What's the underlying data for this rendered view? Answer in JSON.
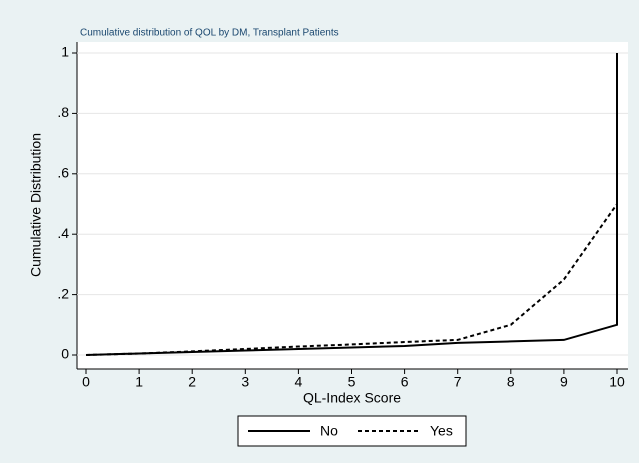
{
  "chart_data": {
    "type": "line",
    "title": "Cumulative distribution of QOL by DM, Transplant Patients",
    "x_label": "QL-Index Score",
    "y_label": "Cumulative Distribution",
    "x": [
      0,
      1,
      2,
      3,
      4,
      5,
      6,
      7,
      8,
      9,
      10,
      10
    ],
    "series": [
      {
        "name": "No",
        "color": "#000000",
        "dash": "solid",
        "values": [
          0,
          0.005,
          0.01,
          0.015,
          0.02,
          0.025,
          0.03,
          0.04,
          0.045,
          0.05,
          0.1,
          1
        ]
      },
      {
        "name": "Yes",
        "color": "#000000",
        "dash": "dashed",
        "values": [
          0,
          0.005,
          0.012,
          0.02,
          0.028,
          0.035,
          0.043,
          0.05,
          0.1,
          0.25,
          0.5,
          1
        ]
      }
    ],
    "xlim": [
      0,
      10
    ],
    "ylim": [
      0,
      1
    ],
    "xticks": [
      0,
      1,
      2,
      3,
      4,
      5,
      6,
      7,
      8,
      9,
      10
    ],
    "yticks": [
      0,
      {
        "value": 0.2,
        "label": ".2"
      },
      {
        "value": 0.4,
        "label": ".4"
      },
      {
        "value": 0.6,
        "label": ".6"
      },
      {
        "value": 0.8,
        "label": ".8"
      },
      1
    ],
    "grid": true,
    "legend": "bottom"
  }
}
